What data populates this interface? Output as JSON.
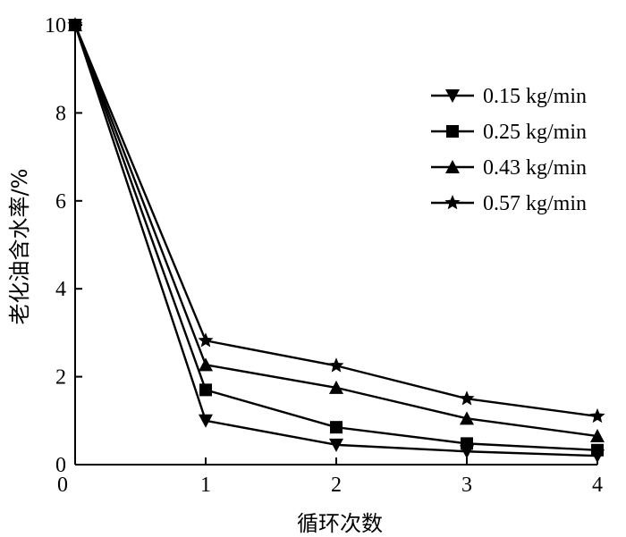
{
  "chart_data": {
    "type": "line",
    "title": "",
    "xlabel": "循环次数",
    "ylabel": "老化油含水率/%",
    "x": [
      0,
      1,
      2,
      3,
      4
    ],
    "x_ticks": [
      "0",
      "1",
      "2",
      "3",
      "4"
    ],
    "y_ticks": [
      "0",
      "2",
      "4",
      "6",
      "8",
      "10"
    ],
    "xlim": [
      0,
      4
    ],
    "ylim": [
      0,
      10
    ],
    "grid": false,
    "legend_position": "top-right",
    "series": [
      {
        "name": "0.15 kg/min",
        "marker": "triangle-down",
        "values": [
          10,
          1.0,
          0.45,
          0.3,
          0.2
        ]
      },
      {
        "name": "0.25 kg/min",
        "marker": "square",
        "values": [
          10,
          1.7,
          0.85,
          0.48,
          0.33
        ]
      },
      {
        "name": "0.43 kg/min",
        "marker": "triangle-up",
        "values": [
          10,
          2.27,
          1.75,
          1.05,
          0.65
        ]
      },
      {
        "name": "0.57 kg/min",
        "marker": "star",
        "values": [
          10,
          2.82,
          2.25,
          1.5,
          1.1
        ]
      }
    ],
    "colors": {
      "line": "#000000",
      "background": "#ffffff"
    }
  }
}
